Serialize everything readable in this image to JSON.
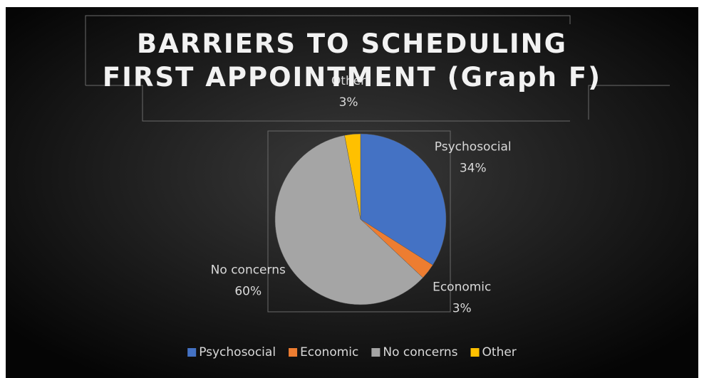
{
  "chart_data": {
    "type": "pie",
    "title": "BARRIERS TO SCHEDULING FIRST APPOINTMENT (Graph F)",
    "categories": [
      "Psychosocial",
      "Economic",
      "No concerns",
      "Other"
    ],
    "values": [
      34,
      3,
      60,
      3
    ],
    "value_labels": [
      "34%",
      "3%",
      "60%",
      "3%"
    ],
    "colors": [
      "#4472c4",
      "#ed7d31",
      "#a5a5a5",
      "#ffc000"
    ],
    "legend": "bottom"
  }
}
